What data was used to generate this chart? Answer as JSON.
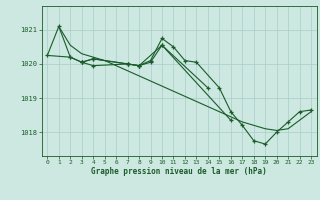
{
  "title": "Graphe pression niveau de la mer (hPa)",
  "background_color": "#cce8e0",
  "grid_color": "#aacccc",
  "line_color": "#1a5c2a",
  "ylim": [
    1017.3,
    1021.7
  ],
  "xlim": [
    -0.5,
    23.5
  ],
  "yticks": [
    1018,
    1019,
    1020,
    1021
  ],
  "xticks": [
    0,
    1,
    2,
    3,
    4,
    5,
    6,
    7,
    8,
    9,
    10,
    11,
    12,
    13,
    14,
    15,
    16,
    17,
    18,
    19,
    20,
    21,
    22,
    23
  ],
  "series1_x": [
    0,
    1,
    2,
    3,
    4,
    5,
    6,
    7,
    8,
    9,
    10,
    11,
    12,
    13,
    14,
    15,
    16,
    17,
    18,
    19,
    20,
    21,
    22,
    23
  ],
  "series1_y": [
    1020.25,
    1021.1,
    1020.55,
    1020.3,
    1020.2,
    1020.1,
    1019.95,
    1019.8,
    1019.65,
    1019.5,
    1019.35,
    1019.2,
    1019.05,
    1018.9,
    1018.75,
    1018.6,
    1018.45,
    1018.3,
    1018.2,
    1018.1,
    1018.05,
    1018.1,
    1018.35,
    1018.6
  ],
  "series2_x": [
    0,
    2,
    3,
    4,
    7,
    8,
    9,
    10,
    11,
    12,
    13,
    15,
    16,
    17,
    18,
    19,
    20,
    21,
    22,
    23
  ],
  "series2_y": [
    1020.25,
    1020.2,
    1020.05,
    1020.15,
    1020.0,
    1019.95,
    1020.1,
    1020.75,
    1020.5,
    1020.1,
    1020.05,
    1019.3,
    1018.6,
    1018.2,
    1017.75,
    1017.65,
    1018.0,
    1018.3,
    1018.6,
    1018.65
  ],
  "series3_x": [
    1,
    2,
    3,
    4,
    7,
    8,
    10,
    14
  ],
  "series3_y": [
    1021.1,
    1020.2,
    1020.05,
    1019.95,
    1020.0,
    1019.95,
    1020.55,
    1019.3
  ],
  "series4_x": [
    3,
    4,
    7,
    8,
    9,
    10,
    16
  ],
  "series4_y": [
    1020.05,
    1020.15,
    1020.0,
    1019.95,
    1020.05,
    1020.55,
    1018.35
  ]
}
